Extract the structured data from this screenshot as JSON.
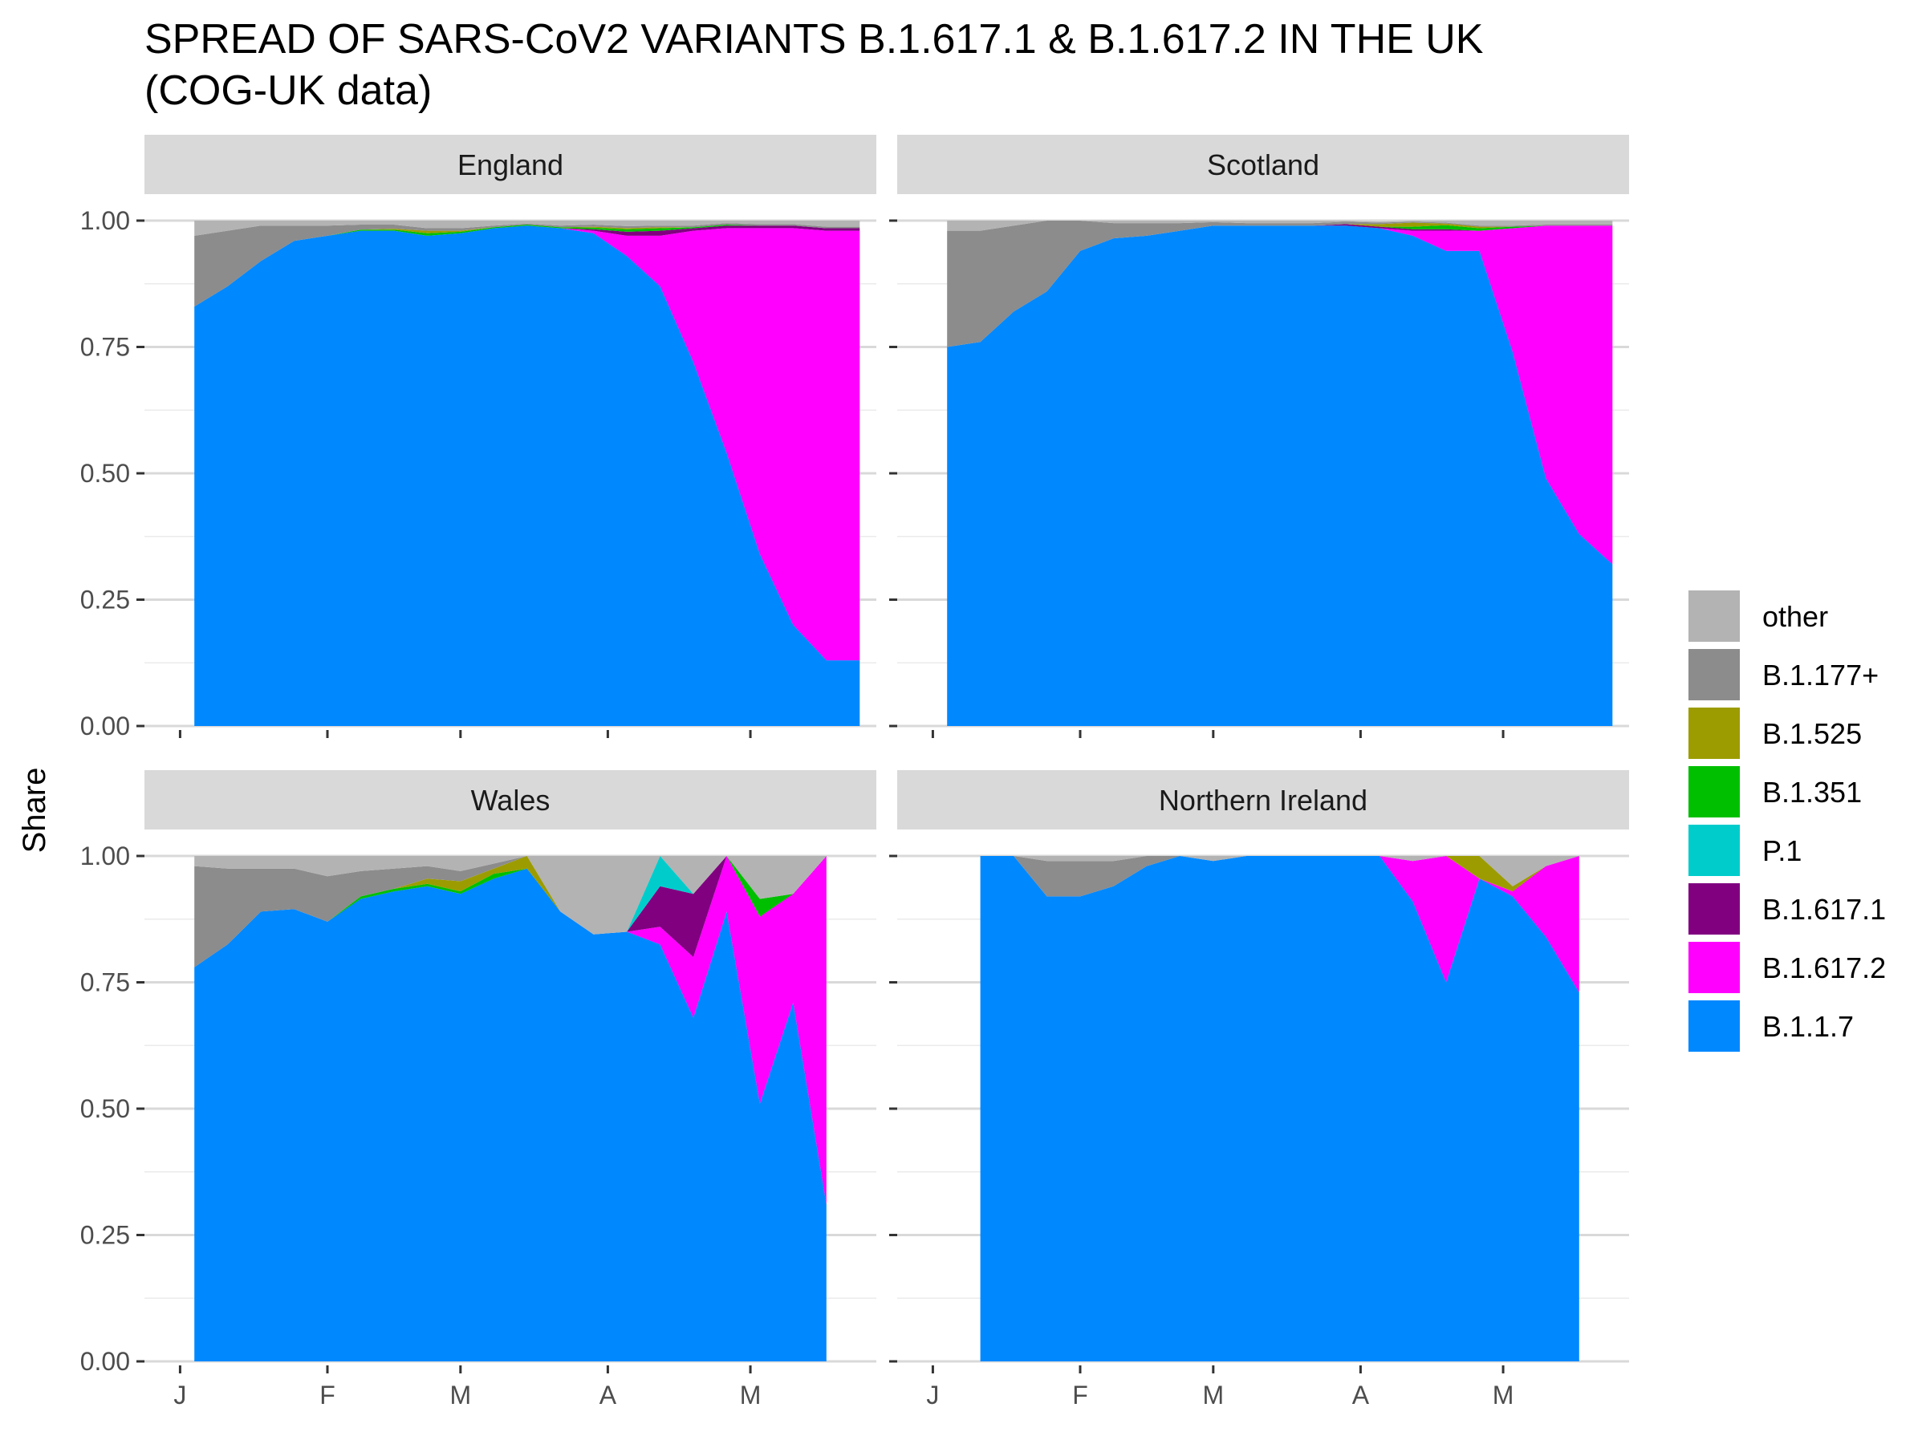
{
  "chart_data": {
    "type": "area",
    "stacked": true,
    "normalized": true,
    "title": "SPREAD OF SARS-CoV2 VARIANTS B.1.617.1 & B.1.617.2 IN THE UK",
    "subtitle": "(COG-UK data)",
    "ylabel": "Share",
    "xlabel": "",
    "ylim": [
      0,
      1
    ],
    "y_ticks": [
      "0.00",
      "0.25",
      "0.50",
      "0.75",
      "1.00"
    ],
    "x_ticks": [
      "J",
      "F",
      "M",
      "A",
      "M"
    ],
    "grid": true,
    "legend_position": "right",
    "series_order": [
      "B.1.1.7",
      "B.1.617.2",
      "B.1.617.1",
      "P.1",
      "B.1.351",
      "B.1.525",
      "B.1.177+",
      "other"
    ],
    "legend": [
      {
        "name": "other",
        "color": "#b3b3b3"
      },
      {
        "name": "B.1.177+",
        "color": "#8c8c8c"
      },
      {
        "name": "B.1.525",
        "color": "#9c9c00"
      },
      {
        "name": "B.1.351",
        "color": "#00bf00"
      },
      {
        "name": "P.1",
        "color": "#00cccc"
      },
      {
        "name": "B.1.617.1",
        "color": "#800080"
      },
      {
        "name": "B.1.617.2",
        "color": "#ff00ff"
      },
      {
        "name": "B.1.1.7",
        "color": "#0088ff"
      }
    ],
    "panels": [
      {
        "name": "England",
        "x": [
          3,
          10,
          17,
          24,
          31,
          38,
          45,
          52,
          59,
          66,
          73,
          80,
          87,
          94,
          101,
          108,
          115,
          122,
          129,
          136,
          143
        ],
        "series": {
          "B.1.1.7": [
            0.83,
            0.87,
            0.92,
            0.96,
            0.97,
            0.98,
            0.98,
            0.97,
            0.975,
            0.985,
            0.99,
            0.985,
            0.975,
            0.93,
            0.87,
            0.72,
            0.54,
            0.34,
            0.2,
            0.13,
            0.13
          ],
          "B.1.617.2": [
            0,
            0,
            0,
            0,
            0,
            0,
            0,
            0,
            0,
            0,
            0,
            0,
            0.005,
            0.04,
            0.1,
            0.26,
            0.445,
            0.645,
            0.785,
            0.85,
            0.85
          ],
          "B.1.617.1": [
            0,
            0,
            0,
            0,
            0,
            0,
            0,
            0,
            0,
            0,
            0,
            0,
            0.003,
            0.008,
            0.01,
            0.005,
            0.005,
            0.005,
            0.005,
            0.005,
            0.005
          ],
          "P.1": [
            0,
            0,
            0,
            0,
            0,
            0,
            0,
            0,
            0,
            0,
            0,
            0,
            0,
            0,
            0,
            0,
            0,
            0,
            0,
            0,
            0
          ],
          "B.1.351": [
            0,
            0,
            0,
            0,
            0,
            0.002,
            0.002,
            0.005,
            0.003,
            0.002,
            0.002,
            0.002,
            0.003,
            0.005,
            0.005,
            0.002,
            0.002,
            0,
            0,
            0,
            0
          ],
          "B.1.525": [
            0,
            0,
            0,
            0,
            0,
            0,
            0.002,
            0.005,
            0.002,
            0,
            0,
            0,
            0.002,
            0.002,
            0.002,
            0,
            0,
            0,
            0,
            0,
            0
          ],
          "B.1.177+": [
            0.14,
            0.11,
            0.07,
            0.03,
            0.02,
            0.01,
            0.008,
            0.005,
            0.005,
            0.003,
            0.002,
            0.003,
            0.004,
            0.004,
            0.003,
            0.003,
            0.003,
            0.003,
            0.003,
            0.003,
            0.003
          ],
          "other": [
            0.03,
            0.02,
            0.01,
            0.01,
            0.01,
            0.008,
            0.008,
            0.015,
            0.015,
            0.01,
            0.006,
            0.01,
            0.008,
            0.011,
            0.01,
            0.01,
            0.005,
            0.007,
            0.007,
            0.012,
            0.012
          ]
        }
      },
      {
        "name": "Scotland",
        "x": [
          3,
          10,
          17,
          24,
          31,
          38,
          45,
          52,
          59,
          66,
          73,
          80,
          87,
          94,
          101,
          108,
          115,
          122,
          129,
          136,
          143
        ],
        "series": {
          "B.1.1.7": [
            0.75,
            0.76,
            0.82,
            0.86,
            0.94,
            0.965,
            0.97,
            0.98,
            0.99,
            0.99,
            0.99,
            0.99,
            0.99,
            0.985,
            0.97,
            0.94,
            0.94,
            0.74,
            0.49,
            0.38,
            0.32
          ],
          "B.1.617.2": [
            0,
            0,
            0,
            0,
            0,
            0,
            0,
            0,
            0,
            0,
            0,
            0,
            0,
            0,
            0.01,
            0.04,
            0.04,
            0.245,
            0.5,
            0.61,
            0.67
          ],
          "B.1.617.1": [
            0,
            0,
            0,
            0,
            0,
            0,
            0,
            0,
            0,
            0,
            0,
            0,
            0.003,
            0.003,
            0.003,
            0.003,
            0,
            0,
            0,
            0,
            0
          ],
          "P.1": [
            0,
            0,
            0,
            0,
            0,
            0,
            0,
            0,
            0,
            0,
            0,
            0,
            0,
            0,
            0,
            0,
            0,
            0,
            0,
            0,
            0
          ],
          "B.1.351": [
            0,
            0,
            0,
            0,
            0,
            0,
            0,
            0,
            0,
            0,
            0,
            0,
            0,
            0,
            0.005,
            0.008,
            0.005,
            0.003,
            0,
            0,
            0
          ],
          "B.1.525": [
            0,
            0,
            0,
            0,
            0,
            0,
            0,
            0,
            0,
            0,
            0,
            0,
            0,
            0.005,
            0.008,
            0.003,
            0.003,
            0,
            0,
            0,
            0
          ],
          "B.1.177+": [
            0.23,
            0.22,
            0.17,
            0.14,
            0.06,
            0.03,
            0.025,
            0.015,
            0.007,
            0.005,
            0.005,
            0.005,
            0.005,
            0.003,
            0.002,
            0.002,
            0.002,
            0.002,
            0.002,
            0.002,
            0.002
          ],
          "other": [
            0.02,
            0.02,
            0.01,
            0,
            0,
            0.005,
            0.005,
            0.005,
            0.003,
            0.005,
            0.005,
            0.005,
            0.002,
            0.002,
            0.002,
            0.004,
            0.01,
            0.01,
            0.008,
            0.008,
            0.008
          ]
        }
      },
      {
        "name": "Wales",
        "x": [
          3,
          10,
          17,
          24,
          31,
          38,
          45,
          52,
          59,
          66,
          73,
          80,
          87,
          94,
          101,
          108,
          115,
          122,
          129,
          136
        ],
        "series": {
          "B.1.1.7": [
            0.78,
            0.825,
            0.89,
            0.895,
            0.87,
            0.915,
            0.93,
            0.94,
            0.925,
            0.955,
            0.975,
            0.89,
            0.845,
            0.85,
            0.825,
            0.68,
            0.89,
            0.51,
            0.71,
            0.31
          ],
          "B.1.617.2": [
            0,
            0,
            0,
            0,
            0,
            0,
            0,
            0,
            0,
            0,
            0,
            0,
            0,
            0,
            0.035,
            0.12,
            0.11,
            0.37,
            0.215,
            0.69
          ],
          "B.1.617.1": [
            0,
            0,
            0,
            0,
            0,
            0,
            0,
            0,
            0,
            0,
            0,
            0,
            0,
            0,
            0.08,
            0.125,
            0,
            0,
            0,
            0
          ],
          "P.1": [
            0,
            0,
            0,
            0,
            0,
            0,
            0,
            0,
            0,
            0,
            0,
            0,
            0,
            0,
            0.06,
            0,
            0,
            0,
            0,
            0
          ],
          "B.1.351": [
            0,
            0,
            0,
            0,
            0,
            0.005,
            0.005,
            0.005,
            0.005,
            0.01,
            0,
            0,
            0,
            0,
            0,
            0,
            0,
            0.035,
            0,
            0
          ],
          "B.1.525": [
            0,
            0,
            0,
            0,
            0,
            0,
            0,
            0.01,
            0.02,
            0.01,
            0.025,
            0,
            0,
            0,
            0,
            0,
            0,
            0,
            0,
            0
          ],
          "B.1.177+": [
            0.2,
            0.15,
            0.085,
            0.08,
            0.09,
            0.05,
            0.04,
            0.025,
            0.02,
            0.01,
            0,
            0,
            0,
            0,
            0,
            0,
            0,
            0,
            0,
            0
          ],
          "other": [
            0.02,
            0.025,
            0.025,
            0.025,
            0.04,
            0.03,
            0.025,
            0.02,
            0.03,
            0.015,
            0,
            0.11,
            0.155,
            0.15,
            0,
            0.075,
            0,
            0.085,
            0.075,
            0
          ]
        }
      },
      {
        "name": "Northern Ireland",
        "x": [
          10,
          17,
          24,
          31,
          38,
          45,
          52,
          59,
          66,
          73,
          80,
          87,
          94,
          101,
          108,
          115,
          122,
          129,
          136
        ],
        "series": {
          "B.1.1.7": [
            1.0,
            1.0,
            0.92,
            0.92,
            0.94,
            0.98,
            1.0,
            0.99,
            1.0,
            1.0,
            1.0,
            1.0,
            1.0,
            0.91,
            0.75,
            0.955,
            0.92,
            0.84,
            0.73
          ],
          "B.1.617.2": [
            0,
            0,
            0,
            0,
            0,
            0,
            0,
            0,
            0,
            0,
            0,
            0,
            0,
            0.08,
            0.25,
            0,
            0.01,
            0.14,
            0.27
          ],
          "B.1.617.1": [
            0,
            0,
            0,
            0,
            0,
            0,
            0,
            0,
            0,
            0,
            0,
            0,
            0,
            0,
            0,
            0,
            0,
            0,
            0
          ],
          "P.1": [
            0,
            0,
            0,
            0,
            0,
            0,
            0,
            0,
            0,
            0,
            0,
            0,
            0,
            0,
            0,
            0,
            0,
            0,
            0
          ],
          "B.1.351": [
            0,
            0,
            0,
            0,
            0,
            0,
            0,
            0,
            0,
            0,
            0,
            0,
            0,
            0,
            0,
            0,
            0,
            0,
            0
          ],
          "B.1.525": [
            0,
            0,
            0,
            0,
            0,
            0,
            0,
            0,
            0,
            0,
            0,
            0,
            0,
            0,
            0,
            0.045,
            0.01,
            0,
            0
          ],
          "B.1.177+": [
            0,
            0,
            0.07,
            0.07,
            0.05,
            0.02,
            0,
            0,
            0,
            0,
            0,
            0,
            0,
            0,
            0,
            0,
            0,
            0,
            0
          ],
          "other": [
            0,
            0,
            0.01,
            0.01,
            0.01,
            0,
            0,
            0.01,
            0,
            0,
            0,
            0,
            0,
            0.01,
            0,
            0,
            0.06,
            0.02,
            0
          ]
        }
      }
    ]
  }
}
